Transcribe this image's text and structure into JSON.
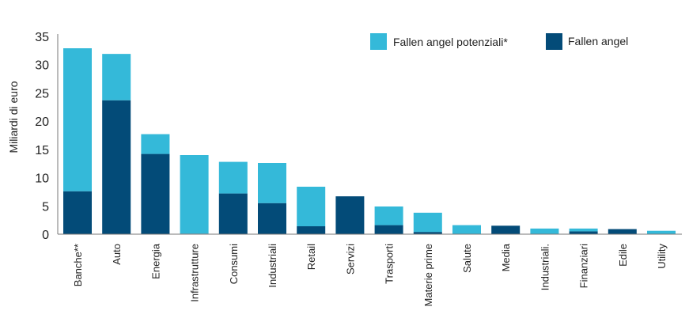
{
  "chart_data": {
    "type": "bar",
    "stacked": true,
    "title": "",
    "xlabel": "",
    "ylabel": "Miliardi di euro",
    "ylim": [
      0,
      35
    ],
    "yticks": [
      0,
      5,
      10,
      15,
      20,
      25,
      30,
      35
    ],
    "grid": false,
    "legend_position": "top-right",
    "categories": [
      "Banche**",
      "Auto",
      "Energia",
      "Infrastrutture",
      "Consumi",
      "Industriali",
      "Retail",
      "Servizi",
      "Trasporti",
      "Materie prime",
      "Salute",
      "Media",
      "Industriali.",
      "Finanziari",
      "Edile",
      "Utility"
    ],
    "series": [
      {
        "name": "Fallen angel",
        "color": "#034b78",
        "values": [
          7.6,
          23.7,
          14.2,
          0.1,
          7.2,
          5.5,
          1.4,
          6.7,
          1.6,
          0.4,
          0,
          1.5,
          0,
          0.5,
          0.9,
          0
        ]
      },
      {
        "name": "Fallen angel potenziali*",
        "color": "#34b9d9",
        "values": [
          25.3,
          8.2,
          3.5,
          13.9,
          5.6,
          7.1,
          7.0,
          0,
          3.3,
          3.4,
          1.6,
          0,
          1.0,
          0.5,
          0,
          0.6
        ]
      }
    ]
  }
}
